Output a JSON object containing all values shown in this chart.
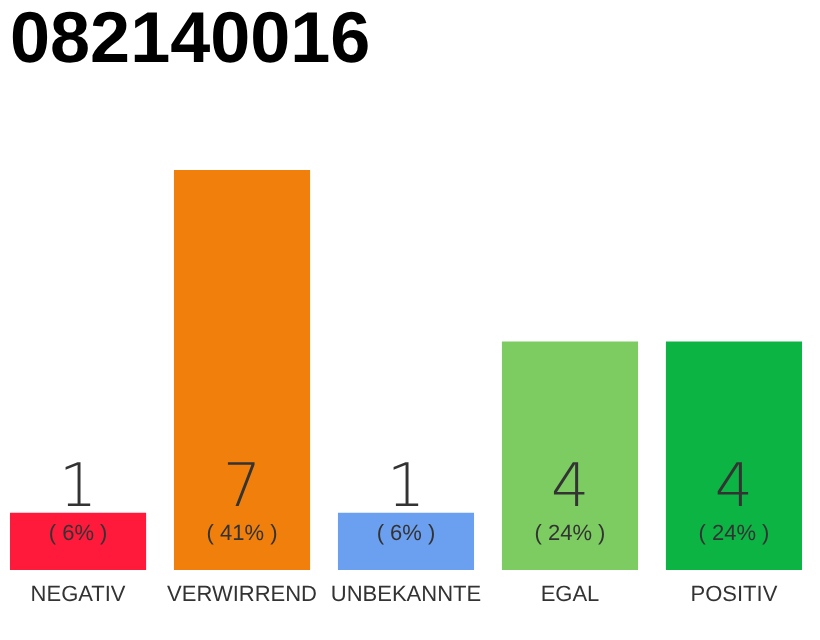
{
  "chart_data": {
    "type": "bar",
    "title": "082140016",
    "categories": [
      "NEGATIV",
      "VERWIRREND",
      "UNBEKANNTE",
      "EGAL",
      "POSITIV"
    ],
    "values": [
      1,
      7,
      1,
      4,
      4
    ],
    "colors": [
      "#ff1a3c",
      "#f07f0c",
      "#6b9ff0",
      "#7ccc62",
      "#0cb444"
    ],
    "ylim": [
      0,
      7
    ],
    "tick_labels": "x",
    "data_labels": true,
    "annotations": [
      "( 6% )",
      "( 41% )",
      "( 6% )",
      "( 24% )",
      "( 24% )"
    ]
  }
}
